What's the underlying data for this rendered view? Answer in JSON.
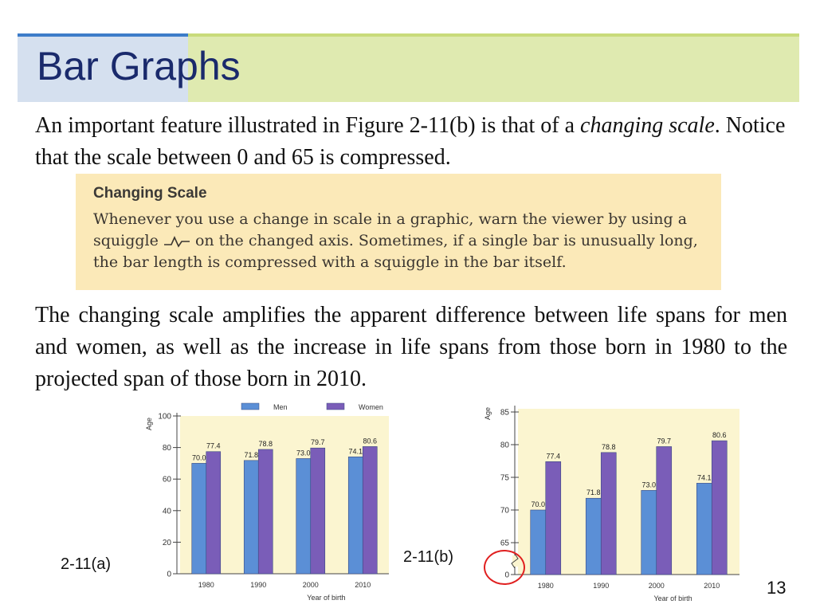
{
  "slide": {
    "title": "Bar Graphs",
    "para1_start": "An important feature illustrated in Figure 2-11(b) is that of a ",
    "para1_italic": "changing scale",
    "para1_end": ". Notice that the scale between 0 and 65 is compressed.",
    "callout_head": "Changing Scale",
    "callout_body_1": "Whenever you use a change in scale in a graphic, warn the viewer by using a squiggle ",
    "callout_body_2": " on the changed axis. Sometimes, if a single bar is unusually long, the bar length is compressed with a squiggle in the bar itself.",
    "para2": "The changing scale amplifies the apparent difference between life spans for men and women, as well as the increase in life spans from those born in 1980 to the projected span of those born in 2010.",
    "label_a": "2-11(a)",
    "label_b": "2-11(b)",
    "page_number": "13"
  },
  "colors": {
    "men": "#5b8fd6",
    "women": "#7a5db8",
    "plot_bg": "#fbf5d0",
    "circle": "#e02020"
  },
  "chart_data": [
    {
      "type": "bar",
      "name": "2-11(a)",
      "categories": [
        "1980",
        "1990",
        "2000",
        "2010"
      ],
      "series": [
        {
          "name": "Men",
          "values": [
            70.0,
            71.8,
            73.0,
            74.1
          ]
        },
        {
          "name": "Women",
          "values": [
            77.4,
            78.8,
            79.7,
            80.6
          ]
        }
      ],
      "xlabel": "Year of birth",
      "ylabel": "Age",
      "ylim": [
        0,
        100
      ],
      "yticks": [
        "0",
        "20",
        "40",
        "60",
        "80",
        "100"
      ],
      "legend": "top",
      "grid": false
    },
    {
      "type": "bar",
      "name": "2-11(b)",
      "categories": [
        "1980",
        "1990",
        "2000",
        "2010"
      ],
      "series": [
        {
          "name": "Men",
          "values": [
            70.0,
            71.8,
            73.0,
            74.1
          ]
        },
        {
          "name": "Women",
          "values": [
            77.4,
            78.8,
            79.7,
            80.6
          ]
        }
      ],
      "xlabel": "Year of birth",
      "ylabel": "Age",
      "ylim": [
        65,
        85
      ],
      "yticks": [
        "0",
        "65",
        "70",
        "75",
        "80",
        "85"
      ],
      "axis_break": true,
      "grid": false
    }
  ]
}
